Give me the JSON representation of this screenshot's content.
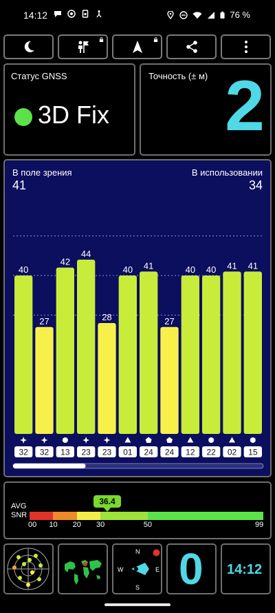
{
  "status_bar": {
    "time": "14:12",
    "battery": "76 %",
    "left_icons": [
      "chat-icon",
      "target-icon",
      "sim-icon",
      "accessibility-icon"
    ],
    "right_icons": [
      "location-icon",
      "dnd-icon",
      "wifi-icon",
      "signal-icon",
      "battery-icon"
    ]
  },
  "toolbar": {
    "buttons": [
      {
        "icon": "moon-icon"
      },
      {
        "icon": "person-flag-icon",
        "locked": true
      },
      {
        "icon": "navigation-arrow-icon",
        "locked": true
      },
      {
        "icon": "share-icon"
      },
      {
        "icon": "more-vertical-icon"
      }
    ]
  },
  "gnss_status": {
    "label": "Статус GNSS",
    "value": "3D Fix",
    "indicator_color": "#5be24a"
  },
  "accuracy": {
    "label": "Точность (± м)",
    "value": "2"
  },
  "satellites": {
    "in_view_label": "В поле зрения",
    "in_view": "41",
    "in_use_label": "В использовании",
    "in_use": "34",
    "scroll_progress": 0.29
  },
  "chart_data": {
    "type": "bar",
    "categories": [
      "32",
      "32",
      "13",
      "23",
      "23",
      "01",
      "24",
      "24",
      "12",
      "22",
      "02",
      "15"
    ],
    "values": [
      40,
      27,
      42,
      44,
      28,
      40,
      41,
      27,
      40,
      40,
      41,
      41
    ],
    "symbols": [
      "star",
      "star",
      "circle",
      "star",
      "star",
      "triangle",
      "pentagon",
      "pentagon",
      "triangle",
      "circle",
      "triangle",
      "circle"
    ],
    "bar_colors": [
      "#c8ec3a",
      "#f7f04a",
      "#c8ec3a",
      "#c8ec3a",
      "#f7f04a",
      "#c8ec3a",
      "#c8ec3a",
      "#f7f04a",
      "#c8ec3a",
      "#c8ec3a",
      "#c8ec3a",
      "#c8ec3a"
    ],
    "ylim": [
      0,
      60
    ],
    "grid_lines_at": [
      30,
      40,
      50
    ]
  },
  "snr": {
    "label_avg": "AVG",
    "label_snr": "SNR",
    "avg_value": "36.4",
    "ticks": [
      "00",
      "10",
      "20",
      "30",
      "50",
      "99"
    ],
    "segments": [
      {
        "from": 0,
        "to": 10,
        "color": "#e0332a"
      },
      {
        "from": 10,
        "to": 20,
        "color": "#ef8a2a"
      },
      {
        "from": 20,
        "to": 30,
        "color": "#f3ee45"
      },
      {
        "from": 30,
        "to": 50,
        "color": "#9ee33a"
      },
      {
        "from": 50,
        "to": 99,
        "color": "#5be24a"
      }
    ]
  },
  "bottom": {
    "radar_icon": "sky-radar-icon",
    "map_icon": "world-map-icon",
    "compass": {
      "n": "N",
      "s": "S",
      "w": "W",
      "e": "E"
    },
    "zero_value": "0",
    "clock": "14:12"
  }
}
